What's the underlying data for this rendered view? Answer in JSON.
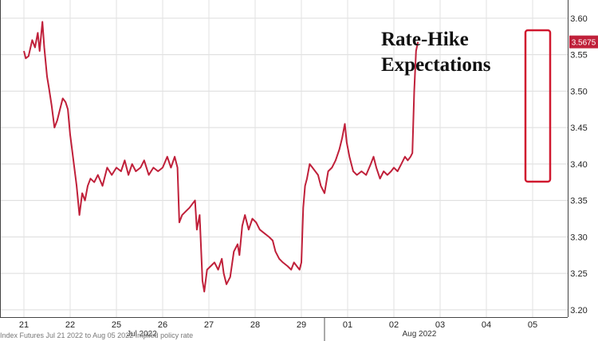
{
  "chart_data": {
    "type": "line",
    "title_lines": [
      "Rate-Hike",
      "Expectations"
    ],
    "xlabel": "",
    "ylabel": "",
    "ylim": [
      3.19,
      3.625
    ],
    "yticks": [
      "3.20",
      "3.25",
      "3.30",
      "3.35",
      "3.40",
      "3.45",
      "3.50",
      "3.55",
      "3.60"
    ],
    "x_tick_labels": [
      "21",
      "22",
      "25",
      "26",
      "27",
      "28",
      "29",
      "01",
      "02",
      "03",
      "04",
      "05"
    ],
    "month_labels": [
      "Jul 2022",
      "Aug 2022"
    ],
    "last_value_label": "3.5675",
    "line_color": "#c0203a",
    "highlight_color": "#d0182f",
    "grid": true,
    "series": [
      {
        "values": [
          [
            0,
            3.555
          ],
          [
            0.04,
            3.545
          ],
          [
            0.1,
            3.548
          ],
          [
            0.18,
            3.57
          ],
          [
            0.24,
            3.56
          ],
          [
            0.3,
            3.58
          ],
          [
            0.34,
            3.555
          ],
          [
            0.4,
            3.595
          ],
          [
            0.44,
            3.56
          ],
          [
            0.5,
            3.52
          ],
          [
            0.54,
            3.505
          ],
          [
            0.6,
            3.48
          ],
          [
            0.66,
            3.45
          ],
          [
            0.72,
            3.46
          ],
          [
            0.78,
            3.475
          ],
          [
            0.84,
            3.49
          ],
          [
            0.9,
            3.485
          ],
          [
            0.95,
            3.475
          ],
          [
            1.0,
            3.44
          ],
          [
            1.02,
            3.43
          ],
          [
            1.1,
            3.39
          ],
          [
            1.14,
            3.37
          ],
          [
            1.2,
            3.33
          ],
          [
            1.26,
            3.36
          ],
          [
            1.32,
            3.35
          ],
          [
            1.38,
            3.37
          ],
          [
            1.44,
            3.38
          ],
          [
            1.52,
            3.375
          ],
          [
            1.6,
            3.385
          ],
          [
            1.7,
            3.37
          ],
          [
            1.8,
            3.395
          ],
          [
            1.9,
            3.385
          ],
          [
            2.0,
            3.395
          ],
          [
            2.1,
            3.39
          ],
          [
            2.18,
            3.405
          ],
          [
            2.26,
            3.385
          ],
          [
            2.34,
            3.4
          ],
          [
            2.42,
            3.39
          ],
          [
            2.52,
            3.395
          ],
          [
            2.6,
            3.405
          ],
          [
            2.7,
            3.385
          ],
          [
            2.8,
            3.395
          ],
          [
            2.9,
            3.39
          ],
          [
            3.0,
            3.395
          ],
          [
            3.1,
            3.41
          ],
          [
            3.18,
            3.395
          ],
          [
            3.26,
            3.41
          ],
          [
            3.32,
            3.395
          ],
          [
            3.36,
            3.32
          ],
          [
            3.42,
            3.33
          ],
          [
            3.5,
            3.335
          ],
          [
            3.58,
            3.34
          ],
          [
            3.64,
            3.345
          ],
          [
            3.7,
            3.35
          ],
          [
            3.74,
            3.31
          ],
          [
            3.8,
            3.33
          ],
          [
            3.86,
            3.24
          ],
          [
            3.9,
            3.225
          ],
          [
            3.96,
            3.255
          ],
          [
            4.04,
            3.26
          ],
          [
            4.12,
            3.265
          ],
          [
            4.2,
            3.255
          ],
          [
            4.28,
            3.27
          ],
          [
            4.32,
            3.25
          ],
          [
            4.38,
            3.235
          ],
          [
            4.46,
            3.245
          ],
          [
            4.54,
            3.28
          ],
          [
            4.62,
            3.29
          ],
          [
            4.66,
            3.275
          ],
          [
            4.72,
            3.315
          ],
          [
            4.78,
            3.33
          ],
          [
            4.86,
            3.31
          ],
          [
            4.94,
            3.325
          ],
          [
            5.02,
            3.32
          ],
          [
            5.1,
            3.31
          ],
          [
            5.2,
            3.305
          ],
          [
            5.3,
            3.3
          ],
          [
            5.38,
            3.295
          ],
          [
            5.44,
            3.28
          ],
          [
            5.52,
            3.27
          ],
          [
            5.6,
            3.265
          ],
          [
            5.7,
            3.26
          ],
          [
            5.78,
            3.255
          ],
          [
            5.84,
            3.265
          ],
          [
            5.9,
            3.26
          ],
          [
            5.96,
            3.255
          ],
          [
            6.0,
            3.265
          ],
          [
            6.04,
            3.34
          ],
          [
            6.08,
            3.37
          ],
          [
            6.12,
            3.38
          ],
          [
            6.18,
            3.4
          ],
          [
            6.24,
            3.395
          ],
          [
            6.3,
            3.39
          ],
          [
            6.36,
            3.385
          ],
          [
            6.42,
            3.37
          ],
          [
            6.5,
            3.36
          ],
          [
            6.58,
            3.39
          ],
          [
            6.66,
            3.395
          ],
          [
            6.74,
            3.405
          ],
          [
            6.82,
            3.42
          ],
          [
            6.88,
            3.435
          ],
          [
            6.94,
            3.455
          ],
          [
            6.98,
            3.43
          ],
          [
            7.04,
            3.41
          ],
          [
            7.12,
            3.39
          ],
          [
            7.2,
            3.385
          ],
          [
            7.3,
            3.39
          ],
          [
            7.4,
            3.385
          ],
          [
            7.5,
            3.4
          ],
          [
            7.56,
            3.41
          ],
          [
            7.62,
            3.395
          ],
          [
            7.7,
            3.38
          ],
          [
            7.78,
            3.39
          ],
          [
            7.86,
            3.385
          ],
          [
            7.94,
            3.39
          ],
          [
            8.0,
            3.395
          ],
          [
            8.08,
            3.39
          ],
          [
            8.16,
            3.4
          ],
          [
            8.24,
            3.41
          ],
          [
            8.3,
            3.405
          ],
          [
            8.36,
            3.41
          ],
          [
            8.4,
            3.415
          ],
          [
            8.44,
            3.5
          ],
          [
            8.48,
            3.555
          ],
          [
            8.52,
            3.5675
          ]
        ]
      }
    ]
  },
  "footer_text": "Index Futures  Jul 21 2022 to Aug 05 2022  Implied policy rate"
}
